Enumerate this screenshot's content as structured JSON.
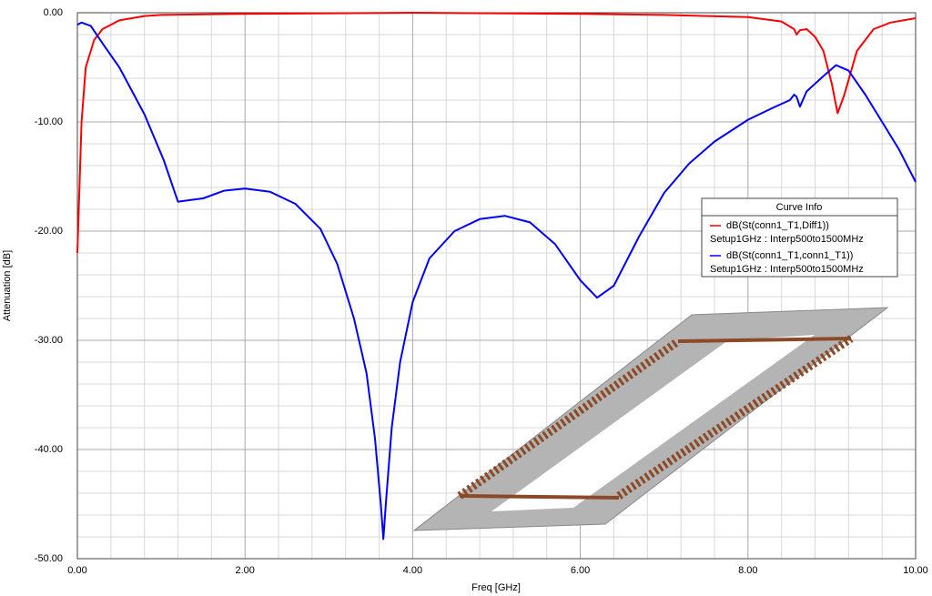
{
  "chart_data": {
    "type": "line",
    "xlabel": "Freq [GHz]",
    "ylabel": "Attenuation [dB]",
    "legend_title": "Curve Info",
    "legend": "upper right",
    "grid": true,
    "xlim": [
      0,
      10
    ],
    "ylim": [
      -50,
      0
    ],
    "xticks": [
      {
        "value": 0,
        "label": "0.00"
      },
      {
        "value": 2,
        "label": "2.00"
      },
      {
        "value": 4,
        "label": "4.00"
      },
      {
        "value": 6,
        "label": "6.00"
      },
      {
        "value": 8,
        "label": "8.00"
      },
      {
        "value": 10,
        "label": "10.00"
      }
    ],
    "yticks": [
      {
        "value": 0,
        "label": "0.00"
      },
      {
        "value": -10,
        "label": "-10.00"
      },
      {
        "value": -20,
        "label": "-20.00"
      },
      {
        "value": -30,
        "label": "-30.00"
      },
      {
        "value": -40,
        "label": "-40.00"
      },
      {
        "value": -50,
        "label": "-50.00"
      }
    ],
    "series": [
      {
        "name": "dB(St(conn1_T1,Diff1))",
        "setup": "Setup1GHz : Interp500to1500MHz",
        "color": "#ff0000",
        "x": [
          0,
          0.05,
          0.1,
          0.2,
          0.3,
          0.5,
          0.8,
          1.0,
          2,
          3,
          4,
          5,
          6,
          7,
          8,
          8.4,
          8.55,
          8.58,
          8.62,
          8.7,
          8.8,
          8.9,
          9.0,
          9.07,
          9.15,
          9.3,
          9.5,
          9.7,
          10
        ],
        "values": [
          -22,
          -10,
          -5,
          -2.5,
          -1.5,
          -0.7,
          -0.3,
          -0.2,
          -0.1,
          -0.05,
          0,
          -0.05,
          -0.1,
          -0.2,
          -0.4,
          -0.8,
          -1.5,
          -2.0,
          -1.6,
          -1.5,
          -2.2,
          -3.5,
          -6.5,
          -9.2,
          -7.5,
          -3.5,
          -1.5,
          -0.9,
          -0.5
        ]
      },
      {
        "name": "dB(St(conn1_T1,conn1_T1))",
        "setup": "Setup1GHz : Interp500to1500MHz",
        "color": "#0000ff",
        "x": [
          0,
          0.05,
          0.16,
          0.3,
          0.5,
          0.8,
          1.03,
          1.2,
          1.5,
          1.75,
          2.0,
          2.3,
          2.6,
          2.9,
          3.1,
          3.3,
          3.45,
          3.55,
          3.62,
          3.65,
          3.68,
          3.75,
          3.85,
          4.0,
          4.2,
          4.5,
          4.8,
          5.1,
          5.4,
          5.7,
          6.0,
          6.2,
          6.4,
          6.7,
          7.0,
          7.3,
          7.6,
          8.0,
          8.3,
          8.5,
          8.55,
          8.58,
          8.62,
          8.7,
          8.9,
          9.05,
          9.2,
          9.4,
          9.6,
          9.8,
          10
        ],
        "values": [
          -1.1,
          -0.9,
          -1.2,
          -2.8,
          -5,
          -9.3,
          -13.5,
          -17.3,
          -17.0,
          -16.3,
          -16.1,
          -16.4,
          -17.5,
          -19.8,
          -23,
          -28,
          -33,
          -39,
          -45,
          -48.2,
          -45,
          -38,
          -32,
          -26.5,
          -22.5,
          -20,
          -18.9,
          -18.6,
          -19.2,
          -21.2,
          -24.5,
          -26.1,
          -25,
          -20.5,
          -16.5,
          -13.8,
          -11.8,
          -9.8,
          -8.7,
          -8.0,
          -7.5,
          -7.7,
          -8.6,
          -7.2,
          -5.8,
          -4.8,
          -5.3,
          -7.5,
          -10,
          -12.5,
          -15.5
        ]
      }
    ]
  }
}
